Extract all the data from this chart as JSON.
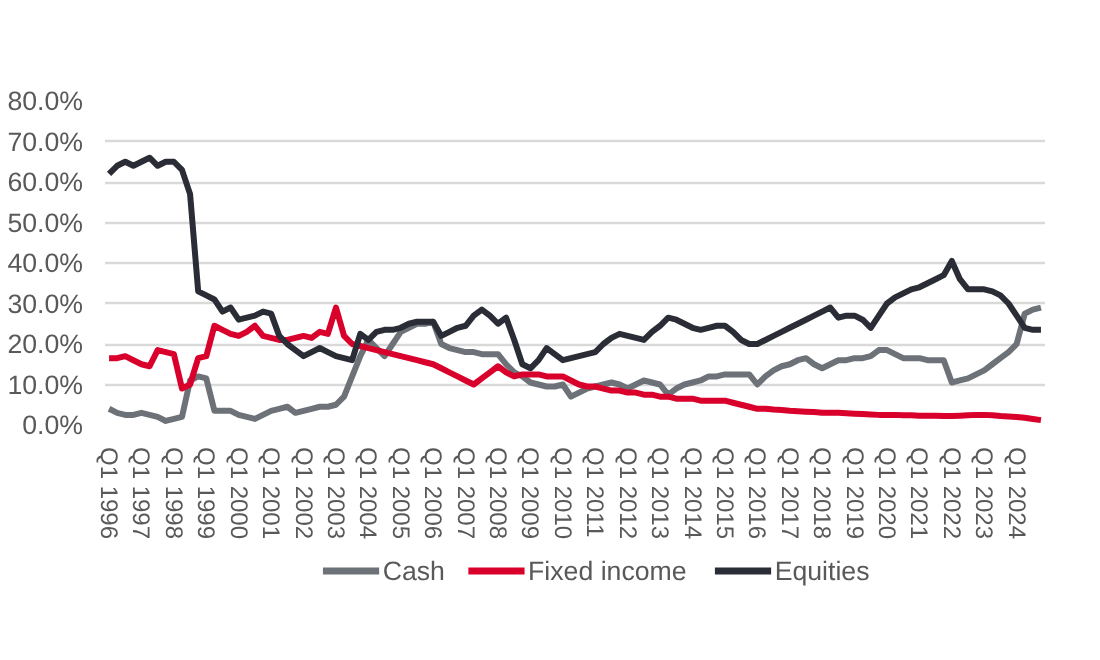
{
  "chart_data": {
    "type": "line",
    "categories": [
      "Q1 1996",
      null,
      null,
      null,
      "Q1 1997",
      null,
      null,
      null,
      "Q1 1998",
      null,
      null,
      null,
      "Q1 1999",
      null,
      null,
      null,
      "Q1 2000",
      null,
      null,
      null,
      "Q1 2001",
      null,
      null,
      null,
      "Q1 2002",
      null,
      null,
      null,
      "Q1 2003",
      null,
      null,
      null,
      "Q1 2004",
      null,
      null,
      null,
      "Q1 2005",
      null,
      null,
      null,
      "Q1 2006",
      null,
      null,
      null,
      "Q1 2007",
      null,
      null,
      null,
      "Q1 2008",
      null,
      null,
      null,
      "Q1 2009",
      null,
      null,
      null,
      "Q1 2010",
      null,
      null,
      null,
      "Q1 2011",
      null,
      null,
      null,
      "Q1 2012",
      null,
      null,
      null,
      "Q1 2013",
      null,
      null,
      null,
      "Q1 2014",
      null,
      null,
      null,
      "Q1 2015",
      null,
      null,
      null,
      "Q1 2016",
      null,
      null,
      null,
      "Q1 2017",
      null,
      null,
      null,
      "Q1 2018",
      null,
      null,
      null,
      "Q1 2019",
      null,
      null,
      null,
      "Q1 2020",
      null,
      null,
      null,
      "Q1 2021",
      null,
      null,
      null,
      "Q1 2022",
      null,
      null,
      null,
      "Q1 2023",
      null,
      null,
      null,
      "Q1 2024",
      null,
      null,
      null
    ],
    "ylim": [
      0,
      80
    ],
    "yticks": [
      {
        "value": 0,
        "label": "0.0%"
      },
      {
        "value": 10,
        "label": "10.0%"
      },
      {
        "value": 20,
        "label": "20.0%"
      },
      {
        "value": 30,
        "label": "30.0%"
      },
      {
        "value": 40,
        "label": "40.0%"
      },
      {
        "value": 50,
        "label": "50.0%"
      },
      {
        "value": 60,
        "label": "60.0%"
      },
      {
        "value": 70,
        "label": "70.0%"
      },
      {
        "value": 80,
        "label": "80.0%"
      }
    ],
    "grid": "y",
    "legend": "bottom",
    "line_style": "solid",
    "series": [
      {
        "name": "Cash",
        "color": "#6d7278",
        "values": [
          4,
          3,
          2.5,
          2.5,
          3,
          2.5,
          2,
          1,
          1.5,
          2,
          11,
          12,
          11.5,
          3.5,
          3.5,
          3.5,
          2.5,
          2,
          1.5,
          2.5,
          3.5,
          4,
          4.5,
          3,
          3.5,
          4,
          4.5,
          4.5,
          5,
          7,
          12,
          17,
          21,
          19,
          17,
          20,
          23,
          24,
          25,
          25,
          25.5,
          20,
          19,
          18.5,
          18,
          18,
          17.5,
          17.5,
          17.5,
          15,
          13,
          12,
          10.5,
          10,
          9.5,
          9.5,
          10,
          7,
          8,
          9,
          9.5,
          10,
          10.5,
          10,
          9,
          10,
          11,
          10.5,
          10,
          7.5,
          9,
          10,
          10.5,
          11,
          12,
          12,
          12.5,
          12.5,
          12.5,
          12.5,
          10,
          12,
          13.5,
          14.5,
          15,
          16,
          16.5,
          15,
          14,
          15,
          16,
          16,
          16.5,
          16.5,
          17,
          18.5,
          18.5,
          17.5,
          16.5,
          16.5,
          16.5,
          16,
          16,
          16,
          10.5,
          11,
          11.5,
          12.5,
          13.5,
          15,
          16.5,
          18,
          20,
          27.5,
          28.5,
          29
        ]
      },
      {
        "name": "Fixed income",
        "color": "#d9002b",
        "values": [
          16.5,
          16.5,
          17,
          16,
          15,
          14.5,
          18.5,
          18,
          17.5,
          9,
          10,
          16.5,
          17,
          24.5,
          23.5,
          22.5,
          22,
          23,
          24.5,
          22,
          21.5,
          21,
          21,
          21.5,
          22,
          21.5,
          23,
          22.5,
          29,
          22,
          20,
          19.5,
          19,
          18.5,
          18,
          17.5,
          17,
          16.5,
          16,
          15.5,
          15,
          14,
          13,
          12,
          11,
          10,
          11.5,
          13,
          14.5,
          13,
          12,
          12.5,
          12.5,
          12.5,
          12,
          12,
          12,
          11,
          10,
          9.5,
          9.5,
          9,
          8.5,
          8.5,
          8,
          8,
          7.5,
          7.5,
          7,
          7,
          6.5,
          6.5,
          6.5,
          6,
          6,
          6,
          6,
          5.5,
          5,
          4.5,
          4,
          4,
          3.8,
          3.7,
          3.5,
          3.4,
          3.3,
          3.2,
          3,
          3,
          3,
          2.9,
          2.8,
          2.7,
          2.6,
          2.5,
          2.5,
          2.5,
          2.4,
          2.4,
          2.3,
          2.3,
          2.3,
          2.2,
          2.2,
          2.3,
          2.4,
          2.5,
          2.5,
          2.4,
          2.2,
          2.1,
          2,
          1.8,
          1.5,
          1.2
        ]
      },
      {
        "name": "Equities",
        "color": "#2b2d36",
        "values": [
          62,
          64,
          65,
          64,
          65,
          66,
          64,
          65,
          65,
          63,
          57,
          33,
          32,
          31,
          28,
          29,
          26,
          26.5,
          27,
          28,
          27.5,
          22,
          20,
          18.5,
          17,
          18,
          19,
          18,
          17,
          16.5,
          16,
          22.5,
          21,
          23,
          23.5,
          23.5,
          24,
          25,
          25.5,
          25.5,
          25.5,
          22,
          23,
          24,
          24.5,
          27,
          28.5,
          27,
          25,
          26.5,
          21,
          15,
          14,
          16,
          19,
          17.5,
          16,
          16.5,
          17,
          17.5,
          18,
          20,
          21.5,
          22.5,
          22,
          21.5,
          21,
          23,
          24.5,
          26.5,
          26,
          25,
          24,
          23.5,
          24,
          24.5,
          24.5,
          23,
          21,
          20,
          20,
          21,
          22,
          23,
          24,
          25,
          26,
          27,
          28,
          29,
          26.5,
          27,
          27,
          26,
          24,
          27,
          30,
          31.5,
          32.5,
          33.5,
          34,
          35,
          36,
          37,
          40.5,
          36,
          33.5,
          33.5,
          33.5,
          33,
          32,
          30,
          27,
          24,
          23.5,
          23.5
        ]
      }
    ]
  }
}
